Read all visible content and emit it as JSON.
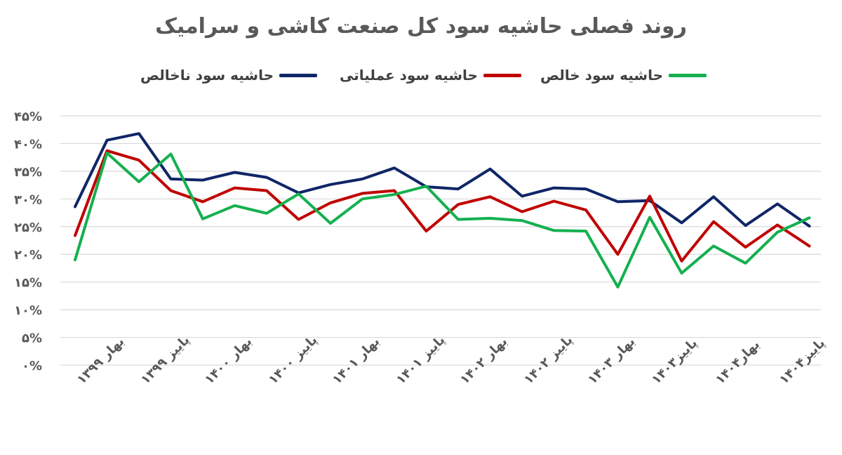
{
  "title": "روند فصلی حاشیه سود کل صنعت کاشی و سرامیک",
  "chart_data": {
    "type": "line",
    "title": "روند فصلی حاشیه سود کل صنعت کاشی و سرامیک",
    "ylim": [
      0,
      45
    ],
    "y_ticks": [
      "۰%",
      "۵%",
      "۱۰%",
      "۱۵%",
      "۲۰%",
      "۲۵%",
      "۳۰%",
      "۳۵%",
      "۴۰%",
      "۴۵%"
    ],
    "y_tick_values": [
      0,
      5,
      10,
      15,
      20,
      25,
      30,
      35,
      40,
      45
    ],
    "x_tick_labels": [
      "بهار ۱۳۹۹",
      "پاییز ۱۳۹۹",
      "بهار ۱۴۰۰",
      "پاییز ۱۴۰۰",
      "بهار ۱۴۰۱",
      "پاییز ۱۴۰۱",
      "بهار ۱۴۰۲",
      "پاییز ۱۴۰۲",
      "بهار ۱۴۰۳",
      "پاییز۱۴۰۳",
      "بهار۱۴۰۴",
      "پاییز۱۴۰۴"
    ],
    "grid": true,
    "legend_position": "top",
    "series": [
      {
        "name": "حاشیه سود ناخالص",
        "color": "#0f2667",
        "values": [
          28.6,
          40.6,
          41.8,
          33.6,
          33.4,
          34.8,
          33.9,
          31.1,
          32.6,
          33.6,
          35.6,
          32.2,
          31.8,
          35.4,
          30.5,
          32.0,
          31.8,
          29.5,
          29.7,
          25.7,
          30.4,
          25.2,
          29.1,
          25.1
        ]
      },
      {
        "name": "حاشیه سود عملیاتی",
        "color": "#c00000",
        "values": [
          23.4,
          38.7,
          37.0,
          31.5,
          29.5,
          32.0,
          31.5,
          26.3,
          29.3,
          31.0,
          31.5,
          24.2,
          29.0,
          30.4,
          27.7,
          29.6,
          28.0,
          20.0,
          30.5,
          18.8,
          25.9,
          21.3,
          25.3,
          21.5
        ]
      },
      {
        "name": "حاشیه سود خالص",
        "color": "#14b04f",
        "values": [
          19.0,
          38.3,
          33.1,
          38.1,
          26.4,
          28.8,
          27.4,
          30.9,
          25.6,
          30.0,
          30.8,
          32.3,
          26.3,
          26.5,
          26.1,
          24.3,
          24.2,
          14.1,
          26.7,
          16.6,
          21.5,
          18.4,
          24.0,
          26.6
        ]
      }
    ]
  }
}
